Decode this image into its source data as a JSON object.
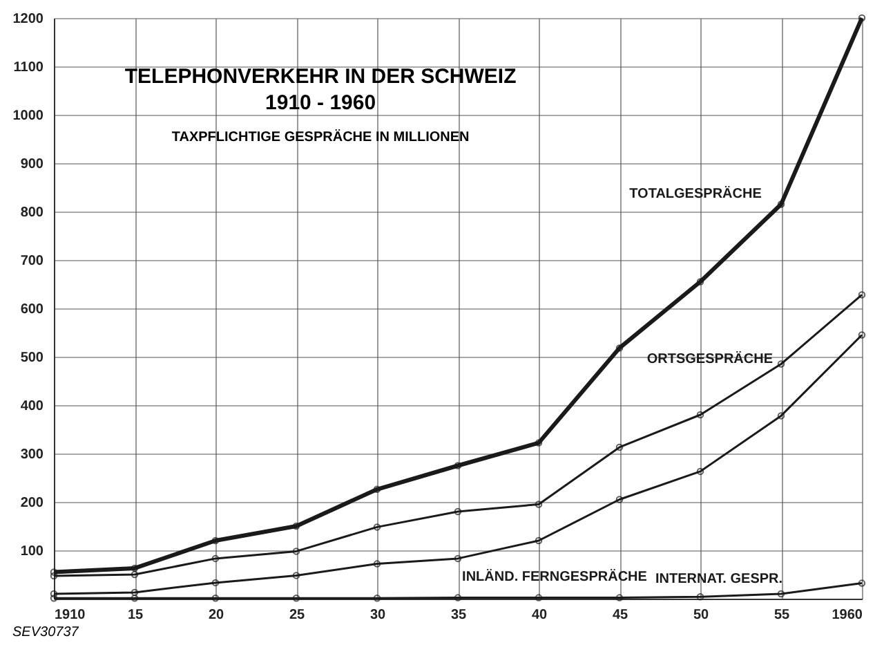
{
  "chart_data": {
    "type": "line",
    "title": "TELEPHONVERKEHR IN DER SCHWEIZ 1910 - 1960",
    "subtitle": "TAXPFLICHTIGE GESPRÄCHE IN MILLIONEN",
    "x": [
      1910,
      1915,
      1920,
      1925,
      1930,
      1935,
      1940,
      1945,
      1950,
      1955,
      1960
    ],
    "series": [
      {
        "name": "TOTALGESPRÄCHE",
        "color": "#1a1a1a",
        "values": [
          55,
          63,
          120,
          150,
          226,
          275,
          322,
          518,
          655,
          815,
          1200
        ]
      },
      {
        "name": "ORTSGESPRÄCHE",
        "color": "#1a1a1a",
        "values": [
          47,
          50,
          83,
          98,
          148,
          180,
          195,
          313,
          380,
          485,
          628
        ]
      },
      {
        "name": "INLÄND. FERNGESPRÄCHE",
        "color": "#1a1a1a",
        "values": [
          10,
          13,
          33,
          48,
          72,
          83,
          120,
          205,
          263,
          378,
          545
        ]
      },
      {
        "name": "INTERNAT. GESPR.",
        "color": "#1a1a1a",
        "values": [
          1,
          1,
          1,
          1,
          1,
          2,
          2,
          2,
          4,
          10,
          32
        ]
      }
    ],
    "xlim": [
      1910,
      1960
    ],
    "xticks": [
      1910,
      {
        "value": 1915,
        "label": "15"
      },
      {
        "value": 1920,
        "label": "20"
      },
      {
        "value": 1925,
        "label": "25"
      },
      {
        "value": 1930,
        "label": "30"
      },
      {
        "value": 1935,
        "label": "35"
      },
      {
        "value": 1940,
        "label": "40"
      },
      {
        "value": 1945,
        "label": "45"
      },
      {
        "value": 1950,
        "label": "50"
      },
      {
        "value": 1955,
        "label": "55"
      },
      1960
    ],
    "ylim": [
      0,
      1200
    ],
    "yticks": [
      100,
      200,
      300,
      400,
      500,
      600,
      700,
      800,
      900,
      1000,
      1100,
      1200
    ],
    "grid": true,
    "marker": "circle",
    "line_style": "solid",
    "annotations": [
      "SEV30737"
    ]
  }
}
